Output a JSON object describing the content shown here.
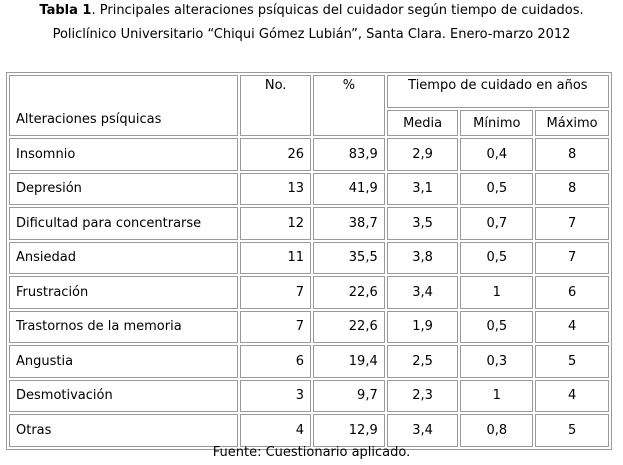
{
  "caption": {
    "table_label": "Tabla 1",
    "line1_rest": ". Principales alteraciones psíquicas del cuidador según tiempo de cuidados.",
    "line2": "Policlínico Universitario “Chiqui Gómez Lubián”, Santa Clara. Enero-marzo 2012"
  },
  "table": {
    "headers": {
      "alteraciones": "Alteraciones psíquicas",
      "no": "No.",
      "pct": "%",
      "tiempo": "Tiempo de cuidado en años",
      "media": "Media",
      "minimo": "Mínimo",
      "maximo": "Máximo"
    },
    "rows": [
      {
        "label": "Insomnio",
        "no": "26",
        "pct": "83,9",
        "media": "2,9",
        "min": "0,4",
        "max": "8"
      },
      {
        "label": "Depresión",
        "no": "13",
        "pct": "41,9",
        "media": "3,1",
        "min": "0,5",
        "max": "8"
      },
      {
        "label": "Dificultad para concentrarse",
        "no": "12",
        "pct": "38,7",
        "media": "3,5",
        "min": "0,7",
        "max": "7"
      },
      {
        "label": "Ansiedad",
        "no": "11",
        "pct": "35,5",
        "media": "3,8",
        "min": "0,5",
        "max": "7"
      },
      {
        "label": "Frustración",
        "no": "7",
        "pct": "22,6",
        "media": "3,4",
        "min": "1",
        "max": "6"
      },
      {
        "label": "Trastornos de la memoria",
        "no": "7",
        "pct": "22,6",
        "media": "1,9",
        "min": "0,5",
        "max": "4"
      },
      {
        "label": "Angustia",
        "no": "6",
        "pct": "19,4",
        "media": "2,5",
        "min": "0,3",
        "max": "5"
      },
      {
        "label": "Desmotivación",
        "no": "3",
        "pct": "9,7",
        "media": "2,3",
        "min": "1",
        "max": "4"
      },
      {
        "label": "Otras",
        "no": "4",
        "pct": "12,9",
        "media": "3,4",
        "min": "0,8",
        "max": "5"
      }
    ]
  },
  "footer": "Fuente: Cuestionario aplicado."
}
